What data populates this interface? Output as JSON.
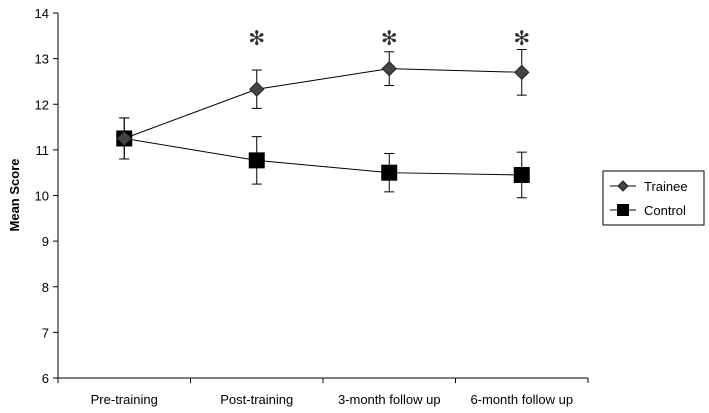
{
  "chart_data": {
    "type": "line",
    "categories": [
      "Pre-training",
      "Post-training",
      "3-month follow up",
      "6-month follow up"
    ],
    "ylabel": "Mean Score",
    "xlabel": "",
    "title": "",
    "ylim": [
      6,
      14
    ],
    "yticks": [
      "6",
      "7",
      "8",
      "9",
      "10",
      "11",
      "12",
      "13",
      "14"
    ],
    "grid": false,
    "legend_position": "right",
    "series": [
      {
        "name": "Trainee",
        "marker": "diamond",
        "values": [
          11.25,
          12.33,
          12.78,
          12.7
        ],
        "error": [
          0.45,
          0.42,
          0.37,
          0.5
        ],
        "color": "#000000"
      },
      {
        "name": "Control",
        "marker": "square",
        "values": [
          11.25,
          10.77,
          10.5,
          10.45
        ],
        "error": [
          0.45,
          0.52,
          0.42,
          0.5
        ],
        "color": "#000000"
      }
    ],
    "annotations": [
      {
        "category_index": 1,
        "text": "✻"
      },
      {
        "category_index": 2,
        "text": "✻"
      },
      {
        "category_index": 3,
        "text": "✻"
      }
    ]
  }
}
